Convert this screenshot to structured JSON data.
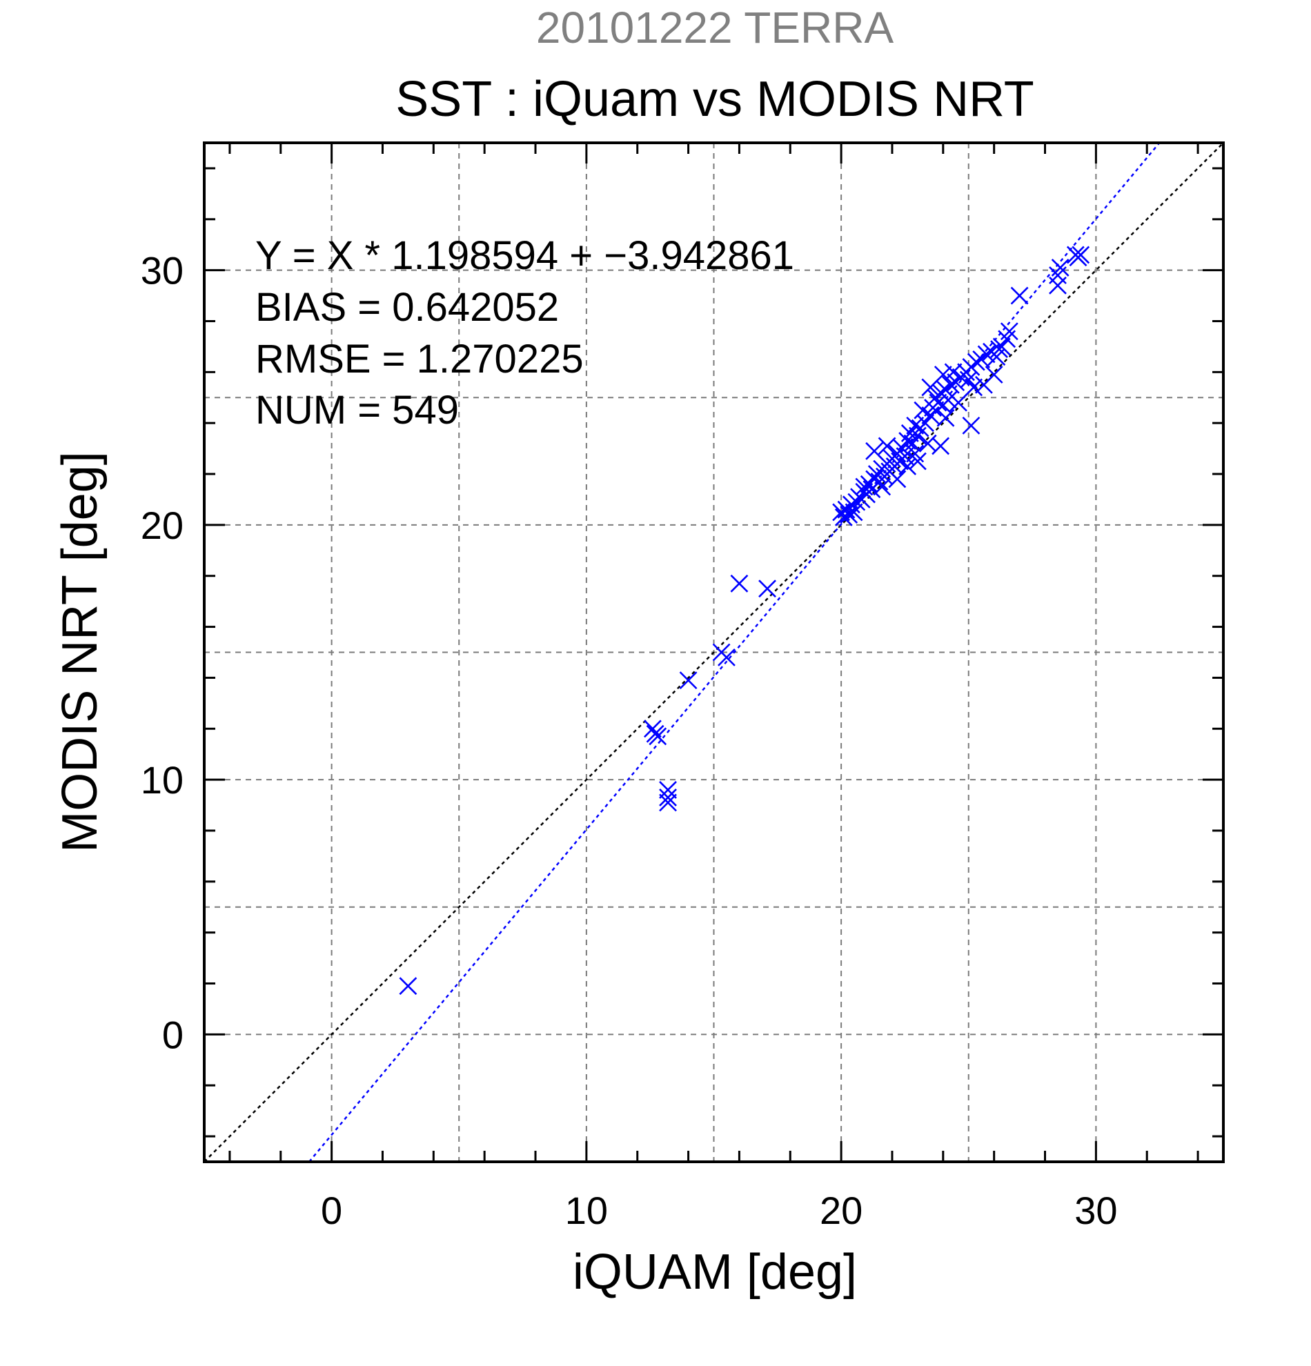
{
  "chart_data": {
    "type": "scatter",
    "suptitle": "20101222 TERRA",
    "title": "SST : iQuam vs MODIS NRT",
    "xlabel": "iQUAM [deg]",
    "ylabel": "MODIS NRT [deg]",
    "xlim": [
      -5,
      35
    ],
    "ylim": [
      -5,
      35
    ],
    "xticks": [
      0,
      10,
      20,
      30
    ],
    "yticks": [
      0,
      10,
      20,
      30
    ],
    "xtick_labels": [
      "0",
      "10",
      "20",
      "30"
    ],
    "ytick_labels": [
      "0",
      "10",
      "20",
      "30"
    ],
    "grid": true,
    "annotations": {
      "equation": "Y = X * 1.198594 + −3.942861",
      "bias": "BIAS = 0.642052",
      "rmse": "RMSE = 1.270225",
      "num": "NUM = 549"
    },
    "lines": [
      {
        "role": "identity",
        "color": "#000000",
        "slope": 1,
        "intercept": 0
      },
      {
        "role": "regression",
        "color": "#0000ff",
        "slope": 1.198594,
        "intercept": -3.942861
      }
    ],
    "marker_color": "#0000ff",
    "points": [
      [
        3.0,
        1.9
      ],
      [
        12.6,
        12.0
      ],
      [
        12.7,
        11.8
      ],
      [
        12.8,
        11.7
      ],
      [
        13.2,
        9.6
      ],
      [
        13.2,
        9.3
      ],
      [
        13.2,
        9.1
      ],
      [
        14.0,
        13.9
      ],
      [
        15.3,
        15.0
      ],
      [
        15.5,
        14.8
      ],
      [
        16.0,
        17.7
      ],
      [
        17.1,
        17.5
      ],
      [
        20.0,
        20.5
      ],
      [
        20.1,
        20.3
      ],
      [
        20.2,
        20.6
      ],
      [
        20.3,
        20.4
      ],
      [
        20.4,
        20.8
      ],
      [
        20.5,
        20.5
      ],
      [
        20.6,
        20.9
      ],
      [
        20.7,
        21.1
      ],
      [
        20.8,
        21.0
      ],
      [
        20.9,
        21.3
      ],
      [
        21.0,
        21.2
      ],
      [
        21.1,
        21.6
      ],
      [
        21.2,
        21.4
      ],
      [
        21.3,
        21.8
      ],
      [
        21.4,
        22.0
      ],
      [
        21.5,
        21.7
      ],
      [
        21.6,
        22.2
      ],
      [
        21.7,
        21.9
      ],
      [
        21.8,
        22.4
      ],
      [
        21.9,
        22.1
      ],
      [
        22.0,
        22.6
      ],
      [
        22.1,
        22.3
      ],
      [
        22.2,
        22.8
      ],
      [
        22.3,
        22.5
      ],
      [
        22.4,
        23.0
      ],
      [
        22.5,
        22.7
      ],
      [
        22.6,
        23.3
      ],
      [
        22.7,
        23.6
      ],
      [
        22.8,
        23.2
      ],
      [
        22.9,
        23.9
      ],
      [
        23.0,
        23.5
      ],
      [
        23.1,
        23.8
      ],
      [
        23.3,
        24.0
      ],
      [
        23.5,
        24.3
      ],
      [
        23.6,
        24.6
      ],
      [
        23.7,
        25.0
      ],
      [
        23.8,
        24.8
      ],
      [
        23.9,
        25.2
      ],
      [
        24.0,
        24.7
      ],
      [
        24.1,
        25.3
      ],
      [
        24.2,
        24.9
      ],
      [
        24.3,
        25.5
      ],
      [
        24.5,
        25.6
      ],
      [
        24.7,
        25.8
      ],
      [
        24.9,
        26.0
      ],
      [
        25.0,
        25.7
      ],
      [
        25.1,
        26.2
      ],
      [
        25.3,
        26.4
      ],
      [
        25.5,
        26.5
      ],
      [
        25.7,
        26.7
      ],
      [
        25.9,
        26.8
      ],
      [
        26.1,
        26.6
      ],
      [
        26.3,
        27.0
      ],
      [
        26.5,
        27.3
      ],
      [
        26.6,
        27.6
      ],
      [
        26.2,
        26.9
      ],
      [
        21.3,
        22.9
      ],
      [
        21.8,
        23.1
      ],
      [
        22.2,
        21.8
      ],
      [
        22.6,
        22.3
      ],
      [
        23.0,
        22.5
      ],
      [
        23.4,
        23.2
      ],
      [
        23.9,
        23.1
      ],
      [
        24.1,
        24.2
      ],
      [
        24.6,
        24.8
      ],
      [
        25.1,
        23.9
      ],
      [
        25.6,
        25.5
      ],
      [
        26.0,
        25.9
      ],
      [
        23.5,
        25.4
      ],
      [
        24.0,
        25.9
      ],
      [
        22.9,
        22.8
      ],
      [
        21.6,
        21.5
      ],
      [
        20.9,
        21.5
      ],
      [
        23.2,
        24.5
      ],
      [
        24.4,
        26.0
      ],
      [
        25.2,
        25.4
      ],
      [
        27.0,
        29.0
      ],
      [
        28.5,
        29.4
      ],
      [
        28.5,
        29.8
      ],
      [
        28.6,
        30.1
      ],
      [
        29.2,
        30.6
      ],
      [
        29.3,
        30.5
      ],
      [
        29.4,
        30.6
      ]
    ]
  }
}
